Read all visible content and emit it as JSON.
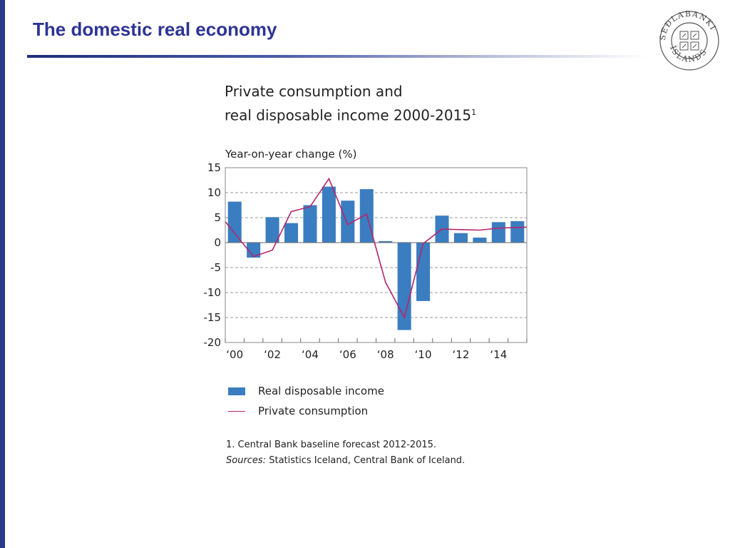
{
  "slide": {
    "title": "The domestic real economy",
    "logo_text": "SEÐLABANKI ÍSLANDS"
  },
  "chart_data": {
    "type": "bar",
    "title_line1": "Private consumption and",
    "title_line2": "real disposable income 2000-2015",
    "title_footnote_mark": "1",
    "ylabel": "Year-on-year change (%)",
    "xlabel": "",
    "ylim": [
      -20,
      15
    ],
    "yticks": [
      15,
      10,
      5,
      0,
      -5,
      -10,
      -15,
      -20
    ],
    "x": [
      2000,
      2001,
      2002,
      2003,
      2004,
      2005,
      2006,
      2007,
      2008,
      2009,
      2010,
      2011,
      2012,
      2013,
      2014,
      2015
    ],
    "xtick_labels": [
      "‘00",
      "‘02",
      "‘04",
      "‘06",
      "‘08",
      "‘10",
      "‘12",
      "‘14"
    ],
    "grid": "horizontal dashed",
    "series": [
      {
        "name": "Real disposable income",
        "type": "bar",
        "color": "#3a7dc0",
        "values": [
          8.2,
          -3.0,
          5.1,
          3.9,
          7.5,
          11.2,
          8.4,
          10.7,
          0.3,
          -17.5,
          -11.7,
          5.4,
          1.9,
          1.0,
          4.1,
          4.3
        ]
      },
      {
        "name": "Private consumption",
        "type": "line",
        "color": "#b5266b",
        "values": [
          4.2,
          -2.8,
          -1.5,
          6.2,
          7.2,
          12.8,
          3.6,
          5.7,
          -7.9,
          -15.0,
          -0.2,
          2.7,
          2.6,
          2.5,
          2.9,
          3.1
        ]
      }
    ],
    "legend_position": "bottom",
    "footnote": "1. Central Bank baseline forecast 2012-2015.",
    "sources_label": "Sources:",
    "sources_text": " Statistics Iceland, Central Bank of Iceland."
  }
}
